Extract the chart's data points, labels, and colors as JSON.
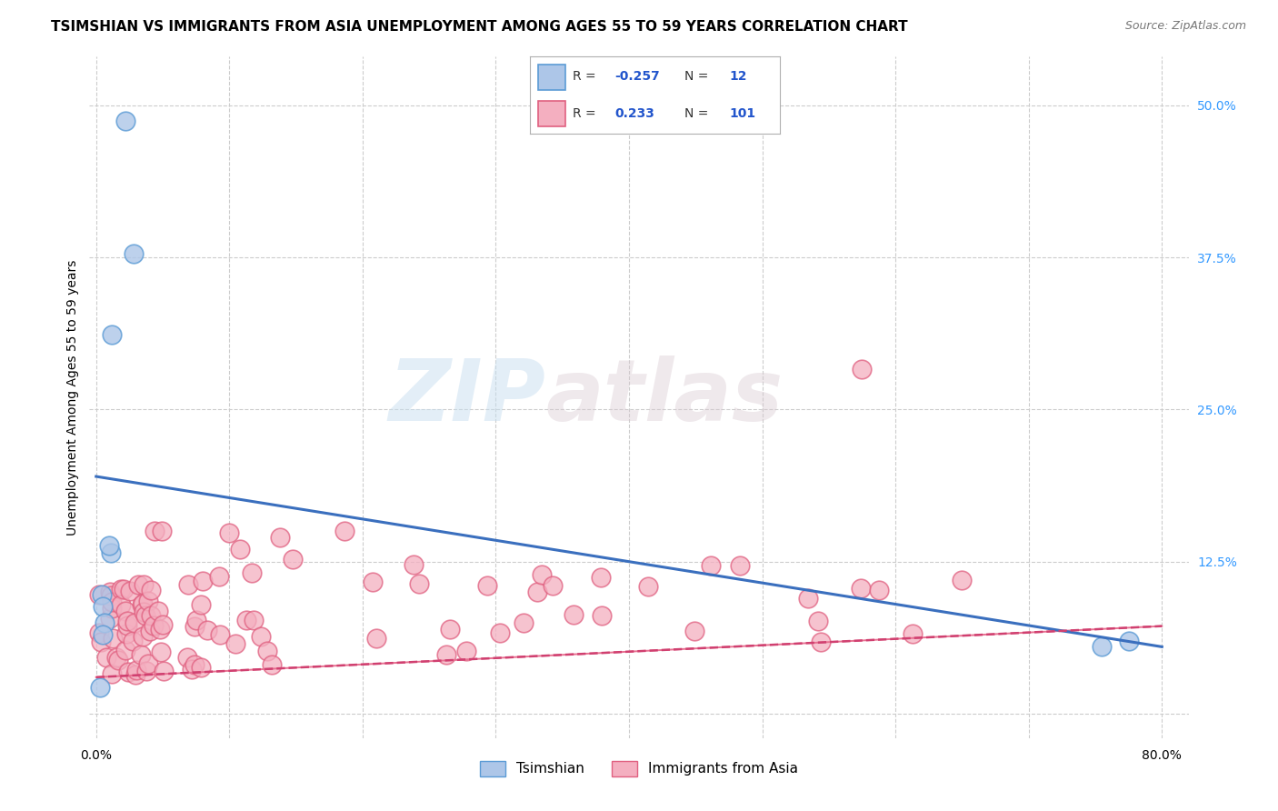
{
  "title": "TSIMSHIAN VS IMMIGRANTS FROM ASIA UNEMPLOYMENT AMONG AGES 55 TO 59 YEARS CORRELATION CHART",
  "source": "Source: ZipAtlas.com",
  "ylabel": "Unemployment Among Ages 55 to 59 years",
  "xlim": [
    -0.005,
    0.82
  ],
  "ylim": [
    -0.02,
    0.54
  ],
  "xticks": [
    0.0,
    0.1,
    0.2,
    0.3,
    0.4,
    0.5,
    0.6,
    0.7,
    0.8
  ],
  "xticklabels": [
    "0.0%",
    "",
    "",
    "",
    "",
    "",
    "",
    "",
    "80.0%"
  ],
  "yticks_right": [
    0.0,
    0.125,
    0.25,
    0.375,
    0.5
  ],
  "yticklabels_right": [
    "",
    "12.5%",
    "25.0%",
    "37.5%",
    "50.0%"
  ],
  "watermark_zip": "ZIP",
  "watermark_atlas": "atlas",
  "legend_R_tsimshian": "-0.257",
  "legend_N_tsimshian": "12",
  "legend_R_asia": "0.233",
  "legend_N_asia": "101",
  "tsimshian_color": "#adc6e8",
  "tsimshian_edge_color": "#5b9bd5",
  "asia_color": "#f4afc0",
  "asia_edge_color": "#e06080",
  "tsimshian_scatter_x": [
    0.022,
    0.028,
    0.012,
    0.011,
    0.01,
    0.004,
    0.005,
    0.006,
    0.005,
    0.003,
    0.755,
    0.775
  ],
  "tsimshian_scatter_y": [
    0.487,
    0.378,
    0.312,
    0.132,
    0.138,
    0.098,
    0.088,
    0.075,
    0.065,
    0.022,
    0.055,
    0.06
  ],
  "tsimshian_trend_x": [
    0.0,
    0.8
  ],
  "tsimshian_trend_y": [
    0.195,
    0.055
  ],
  "asia_trend_x": [
    0.0,
    0.8
  ],
  "asia_trend_y": [
    0.03,
    0.072
  ],
  "background_color": "#ffffff",
  "grid_color": "#cccccc",
  "title_fontsize": 11,
  "axis_fontsize": 10
}
